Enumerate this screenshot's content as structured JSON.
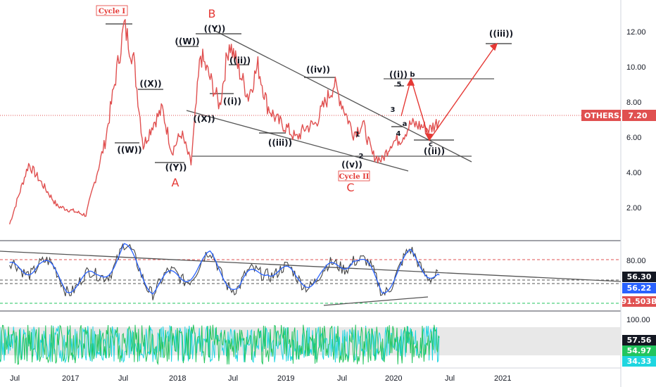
{
  "chart_data": {
    "type": "line",
    "symbol": "OTHERS.D",
    "last_value": "7.20",
    "price_axis": {
      "ticks": [
        "12.00",
        "10.00",
        "8.00",
        "6.00",
        "4.00",
        "2.00"
      ],
      "ylim": [
        0.6,
        13.8
      ]
    },
    "time_axis": {
      "ticks": [
        "Jul",
        "2017",
        "Jul",
        "2018",
        "Jul",
        "2019",
        "Jul",
        "2020",
        "Jul",
        "2021"
      ],
      "xlim": [
        "2016-04",
        "2021-09"
      ]
    },
    "price_series": {
      "x": [
        "2016-05",
        "2016-07",
        "2016-10",
        "2017-01",
        "2017-03",
        "2017-05",
        "2017-06",
        "2017-07",
        "2017-08",
        "2017-09",
        "2017-10",
        "2017-11",
        "2017-12",
        "2018-01",
        "2018-02",
        "2018-03",
        "2018-04",
        "2018-05",
        "2018-06",
        "2018-07",
        "2018-08",
        "2018-09",
        "2018-10",
        "2018-11",
        "2018-12",
        "2019-01",
        "2019-03",
        "2019-05",
        "2019-06",
        "2019-07",
        "2019-08",
        "2019-09",
        "2019-10",
        "2019-11",
        "2019-12",
        "2020-01",
        "2020-02"
      ],
      "y": [
        1.5,
        4.8,
        2.5,
        2.0,
        6.0,
        12.4,
        10.5,
        5.8,
        7.0,
        7.8,
        5.5,
        6.5,
        4.8,
        10.8,
        9.5,
        8.0,
        11.5,
        10.0,
        8.5,
        10.2,
        8.0,
        7.2,
        6.8,
        6.2,
        6.8,
        7.0,
        9.2,
        6.5,
        7.0,
        5.3,
        5.0,
        6.0,
        6.2,
        7.0,
        6.9,
        6.7,
        7.2
      ]
    },
    "wave_labels": [
      "Cycle I",
      "B",
      "((Y))",
      "((W))",
      "((ii))",
      "((X))",
      "((i))",
      "((W))",
      "((X))",
      "((Y))",
      "A",
      "((iv))",
      "((iii))",
      "1",
      "2",
      "((v))",
      "Cycle II",
      "C",
      "((i))",
      "b",
      "5",
      "3",
      "a",
      "4",
      "c",
      "((ii))",
      "((iii))"
    ],
    "indicator1": {
      "last_value": "56.30",
      "signal_value": "56.22",
      "volume_value": "91.503B",
      "ticks": [
        "80.00"
      ],
      "ylim": [
        10,
        100
      ],
      "x": [
        "2016-05",
        "2016-08",
        "2016-11",
        "2017-02",
        "2017-05",
        "2017-08",
        "2017-11",
        "2018-02",
        "2018-05",
        "2018-08",
        "2018-11",
        "2019-02",
        "2019-05",
        "2019-08",
        "2019-11",
        "2020-02"
      ],
      "y": [
        60,
        72,
        45,
        50,
        88,
        42,
        55,
        75,
        40,
        68,
        50,
        55,
        82,
        40,
        78,
        56
      ]
    },
    "indicator2": {
      "ticks": [
        "100.00"
      ],
      "values": [
        "57.56",
        "54.97",
        "34.33"
      ]
    },
    "colors": {
      "price_line": "#e05050",
      "indicator1_line": "#2962ff",
      "indicator2_fill": "#22c55e",
      "indicator2_alt": "#1fd6e0",
      "projection": "#e53935",
      "badge_bg": "#e05050"
    }
  }
}
